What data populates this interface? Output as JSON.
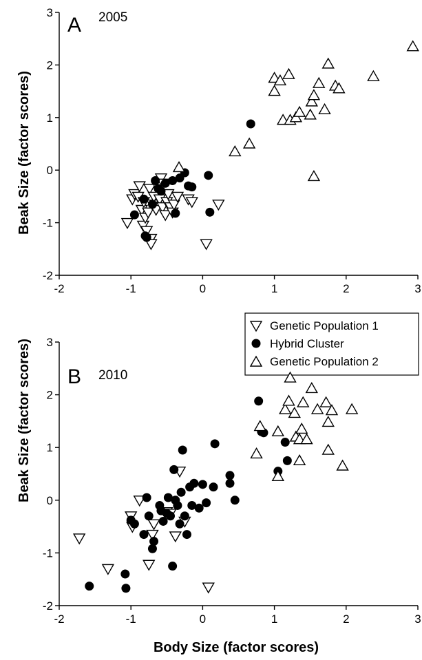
{
  "chart_data": [
    {
      "type": "scatter",
      "panel_label": "A",
      "year": "2005",
      "xlabel": "",
      "ylabel": "Beak Size (factor scores)",
      "xlim": [
        -2,
        3
      ],
      "ylim": [
        -2,
        3
      ],
      "xticks": [
        "-2",
        "-1",
        "0",
        "1",
        "2",
        "3"
      ],
      "yticks": [
        "-2",
        "-1",
        "0",
        "1",
        "2",
        "3"
      ],
      "series": [
        {
          "name": "Genetic Population 1",
          "marker": "triangle-down",
          "points": [
            [
              -1.05,
              -1.0
            ],
            [
              -0.98,
              -0.55
            ],
            [
              -0.95,
              -0.45
            ],
            [
              -0.9,
              -0.5
            ],
            [
              -0.88,
              -0.3
            ],
            [
              -0.85,
              -0.75
            ],
            [
              -0.83,
              -1.05
            ],
            [
              -0.82,
              -0.6
            ],
            [
              -0.8,
              -0.9
            ],
            [
              -0.78,
              -1.15
            ],
            [
              -0.76,
              -0.8
            ],
            [
              -0.74,
              -0.35
            ],
            [
              -0.72,
              -1.3
            ],
            [
              -0.72,
              -1.4
            ],
            [
              -0.7,
              -0.65
            ],
            [
              -0.68,
              -0.5
            ],
            [
              -0.65,
              -0.75
            ],
            [
              -0.63,
              -0.3
            ],
            [
              -0.6,
              -0.55
            ],
            [
              -0.58,
              -0.15
            ],
            [
              -0.56,
              -0.7
            ],
            [
              -0.55,
              -0.25
            ],
            [
              -0.52,
              -0.85
            ],
            [
              -0.5,
              -0.6
            ],
            [
              -0.48,
              -0.45
            ],
            [
              -0.45,
              -0.7
            ],
            [
              -0.42,
              -0.8
            ],
            [
              -0.4,
              -0.65
            ],
            [
              -0.35,
              -0.5
            ],
            [
              -0.2,
              -0.55
            ],
            [
              -0.15,
              -0.6
            ],
            [
              0.05,
              -1.4
            ],
            [
              0.22,
              -0.65
            ]
          ]
        },
        {
          "name": "Hybrid Cluster",
          "marker": "circle",
          "points": [
            [
              -0.95,
              -0.85
            ],
            [
              -0.82,
              -0.55
            ],
            [
              -0.8,
              -1.25
            ],
            [
              -0.78,
              -1.28
            ],
            [
              -0.7,
              -0.65
            ],
            [
              -0.66,
              -0.2
            ],
            [
              -0.62,
              -0.35
            ],
            [
              -0.58,
              -0.4
            ],
            [
              -0.52,
              -0.25
            ],
            [
              -0.42,
              -0.2
            ],
            [
              -0.38,
              -0.82
            ],
            [
              -0.32,
              -0.15
            ],
            [
              -0.25,
              -0.05
            ],
            [
              -0.2,
              -0.3
            ],
            [
              -0.15,
              -0.32
            ],
            [
              0.08,
              -0.1
            ],
            [
              0.1,
              -0.8
            ],
            [
              0.67,
              0.88
            ]
          ]
        },
        {
          "name": "Genetic Population 2",
          "marker": "triangle-up",
          "points": [
            [
              -0.33,
              0.05
            ],
            [
              0.45,
              0.35
            ],
            [
              0.65,
              0.5
            ],
            [
              1.0,
              1.75
            ],
            [
              1.0,
              1.5
            ],
            [
              1.08,
              1.7
            ],
            [
              1.12,
              0.95
            ],
            [
              1.2,
              1.82
            ],
            [
              1.22,
              0.95
            ],
            [
              1.3,
              1.0
            ],
            [
              1.35,
              1.1
            ],
            [
              1.5,
              1.05
            ],
            [
              1.52,
              1.3
            ],
            [
              1.55,
              1.42
            ],
            [
              1.55,
              -0.12
            ],
            [
              1.62,
              1.65
            ],
            [
              1.7,
              1.15
            ],
            [
              1.75,
              2.02
            ],
            [
              1.85,
              1.6
            ],
            [
              1.9,
              1.55
            ],
            [
              2.38,
              1.78
            ],
            [
              2.93,
              2.35
            ]
          ]
        }
      ]
    },
    {
      "type": "scatter",
      "panel_label": "B",
      "year": "2010",
      "xlabel": "Body Size (factor scores)",
      "ylabel": "Beak Size (factor scores)",
      "xlim": [
        -2,
        3
      ],
      "ylim": [
        -2,
        3
      ],
      "xticks": [
        "-2",
        "-1",
        "0",
        "1",
        "2",
        "3"
      ],
      "yticks": [
        "-2",
        "-1",
        "0",
        "1",
        "2",
        "3"
      ],
      "legend": {
        "position": "top-right",
        "entries": [
          "Genetic Population 1",
          "Hybrid Cluster",
          "Genetic Population 2"
        ]
      },
      "series": [
        {
          "name": "Genetic Population 1",
          "marker": "triangle-down",
          "points": [
            [
              -1.72,
              -0.72
            ],
            [
              -1.32,
              -1.3
            ],
            [
              -1.0,
              -0.3
            ],
            [
              -0.98,
              -0.5
            ],
            [
              -0.88,
              0.0
            ],
            [
              -0.75,
              -1.22
            ],
            [
              -0.7,
              -0.65
            ],
            [
              -0.68,
              -0.45
            ],
            [
              -0.5,
              -0.22
            ],
            [
              -0.45,
              -0.25
            ],
            [
              -0.38,
              -0.68
            ],
            [
              -0.32,
              0.55
            ],
            [
              -0.25,
              -0.4
            ],
            [
              0.08,
              -1.65
            ]
          ]
        },
        {
          "name": "Hybrid Cluster",
          "marker": "circle",
          "points": [
            [
              -1.58,
              -1.63
            ],
            [
              -1.08,
              -1.4
            ],
            [
              -1.07,
              -1.67
            ],
            [
              -1.0,
              -0.38
            ],
            [
              -0.95,
              -0.45
            ],
            [
              -0.82,
              -0.65
            ],
            [
              -0.78,
              0.05
            ],
            [
              -0.75,
              -0.3
            ],
            [
              -0.7,
              -0.92
            ],
            [
              -0.68,
              -0.78
            ],
            [
              -0.6,
              -0.1
            ],
            [
              -0.58,
              -0.2
            ],
            [
              -0.55,
              -0.4
            ],
            [
              -0.5,
              -0.25
            ],
            [
              -0.48,
              0.05
            ],
            [
              -0.45,
              -0.3
            ],
            [
              -0.42,
              -1.25
            ],
            [
              -0.4,
              0.58
            ],
            [
              -0.38,
              0.0
            ],
            [
              -0.35,
              -0.1
            ],
            [
              -0.32,
              -0.45
            ],
            [
              -0.3,
              0.15
            ],
            [
              -0.28,
              0.95
            ],
            [
              -0.25,
              -0.3
            ],
            [
              -0.22,
              -0.65
            ],
            [
              -0.18,
              0.25
            ],
            [
              -0.15,
              -0.1
            ],
            [
              -0.12,
              0.32
            ],
            [
              -0.05,
              -0.15
            ],
            [
              0.0,
              0.3
            ],
            [
              0.05,
              -0.05
            ],
            [
              0.15,
              0.25
            ],
            [
              0.17,
              1.07
            ],
            [
              0.38,
              0.32
            ],
            [
              0.38,
              0.47
            ],
            [
              0.45,
              0.0
            ],
            [
              0.78,
              1.88
            ],
            [
              0.82,
              1.3
            ],
            [
              0.85,
              1.28
            ],
            [
              1.05,
              0.55
            ],
            [
              1.15,
              1.1
            ],
            [
              1.18,
              0.75
            ]
          ]
        },
        {
          "name": "Genetic Population 2",
          "marker": "triangle-up",
          "points": [
            [
              0.75,
              0.88
            ],
            [
              0.8,
              1.4
            ],
            [
              1.05,
              1.3
            ],
            [
              1.05,
              0.45
            ],
            [
              1.15,
              1.72
            ],
            [
              1.2,
              1.88
            ],
            [
              1.22,
              2.32
            ],
            [
              1.28,
              1.65
            ],
            [
              1.3,
              1.2
            ],
            [
              1.35,
              0.75
            ],
            [
              1.35,
              1.15
            ],
            [
              1.38,
              1.35
            ],
            [
              1.4,
              1.85
            ],
            [
              1.45,
              1.15
            ],
            [
              1.52,
              2.12
            ],
            [
              1.6,
              1.72
            ],
            [
              1.72,
              1.85
            ],
            [
              1.75,
              1.48
            ],
            [
              1.75,
              0.95
            ],
            [
              1.8,
              1.7
            ],
            [
              1.95,
              0.65
            ],
            [
              2.08,
              1.72
            ]
          ]
        }
      ]
    }
  ]
}
